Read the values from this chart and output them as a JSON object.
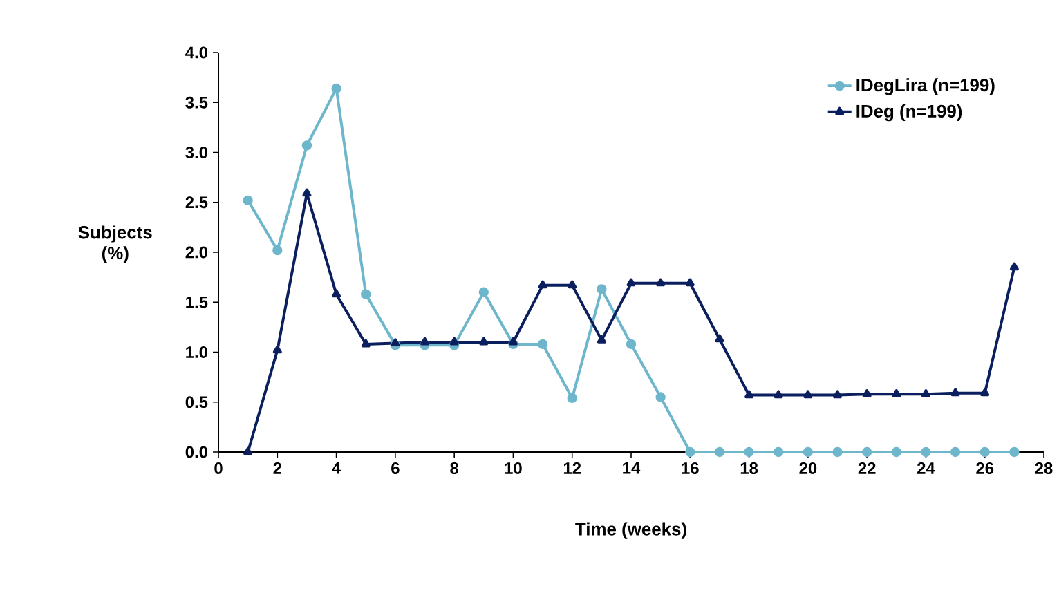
{
  "chart_data": {
    "type": "line",
    "xlabel": "Time (weeks)",
    "ylabel": "Subjects (%)",
    "x": [
      1,
      2,
      3,
      4,
      5,
      6,
      7,
      8,
      9,
      10,
      11,
      12,
      13,
      14,
      15,
      16,
      17,
      18,
      19,
      20,
      21,
      22,
      23,
      24,
      25,
      26,
      27
    ],
    "series": [
      {
        "name": "IDegLira (n=199)",
        "color": "#6db6cc",
        "marker": "circle",
        "values": [
          2.52,
          2.02,
          3.07,
          3.64,
          1.58,
          1.07,
          1.07,
          1.07,
          1.6,
          1.08,
          1.08,
          0.54,
          1.63,
          1.08,
          0.55,
          0,
          0,
          0,
          0,
          0,
          0,
          0,
          0,
          0,
          0,
          0,
          0
        ]
      },
      {
        "name": "IDeg (n=199)",
        "color": "#0b1f5e",
        "marker": "triangle",
        "values": [
          0,
          1.02,
          2.59,
          1.58,
          1.08,
          1.09,
          1.1,
          1.1,
          1.1,
          1.1,
          1.67,
          1.67,
          1.12,
          1.69,
          1.69,
          1.69,
          1.13,
          0.57,
          0.57,
          0.57,
          0.57,
          0.58,
          0.58,
          0.58,
          0.59,
          0.59,
          1.85
        ]
      }
    ],
    "xlim": [
      0,
      28
    ],
    "xticks": [
      0,
      2,
      4,
      6,
      8,
      10,
      12,
      14,
      16,
      18,
      20,
      22,
      24,
      26,
      28
    ],
    "ylim": [
      0,
      4
    ],
    "yticks": [
      {
        "value": 0,
        "label": "0.0"
      },
      {
        "value": 0.5,
        "label": "0.5"
      },
      {
        "value": 1,
        "label": "1.0"
      },
      {
        "value": 1.5,
        "label": "1.5"
      },
      {
        "value": 2,
        "label": "2.0"
      },
      {
        "value": 2.5,
        "label": "2.5"
      },
      {
        "value": 3,
        "label": "3.0"
      },
      {
        "value": 3.5,
        "label": "3.5"
      },
      {
        "value": 4,
        "label": "4.0"
      }
    ],
    "grid": false,
    "legend": "top right"
  }
}
